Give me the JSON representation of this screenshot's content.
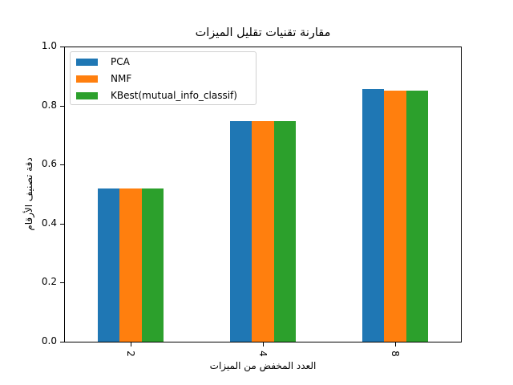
{
  "chart_data": {
    "type": "bar",
    "title": "مقارنة تقنيات تقليل الميزات",
    "xlabel": "العدد المخفض من الميزات",
    "ylabel": "دقة تصنيف الأرقام",
    "categories": [
      "2",
      "4",
      "8"
    ],
    "series": [
      {
        "name": "PCA",
        "color": "#1f77b4",
        "values": [
          0.52,
          0.748,
          0.859
        ]
      },
      {
        "name": "NMF",
        "color": "#ff7f0e",
        "values": [
          0.52,
          0.748,
          0.854
        ]
      },
      {
        "name": "KBest(mutual_info_classif)",
        "color": "#2ca02c",
        "values": [
          0.52,
          0.748,
          0.854
        ]
      }
    ],
    "ylim": [
      0.0,
      1.0
    ],
    "yticks": [
      "0.0",
      "0.2",
      "0.4",
      "0.6",
      "0.8",
      "1.0"
    ],
    "xtick_rotation": 90,
    "grid": false,
    "legend_position": "upper left"
  }
}
